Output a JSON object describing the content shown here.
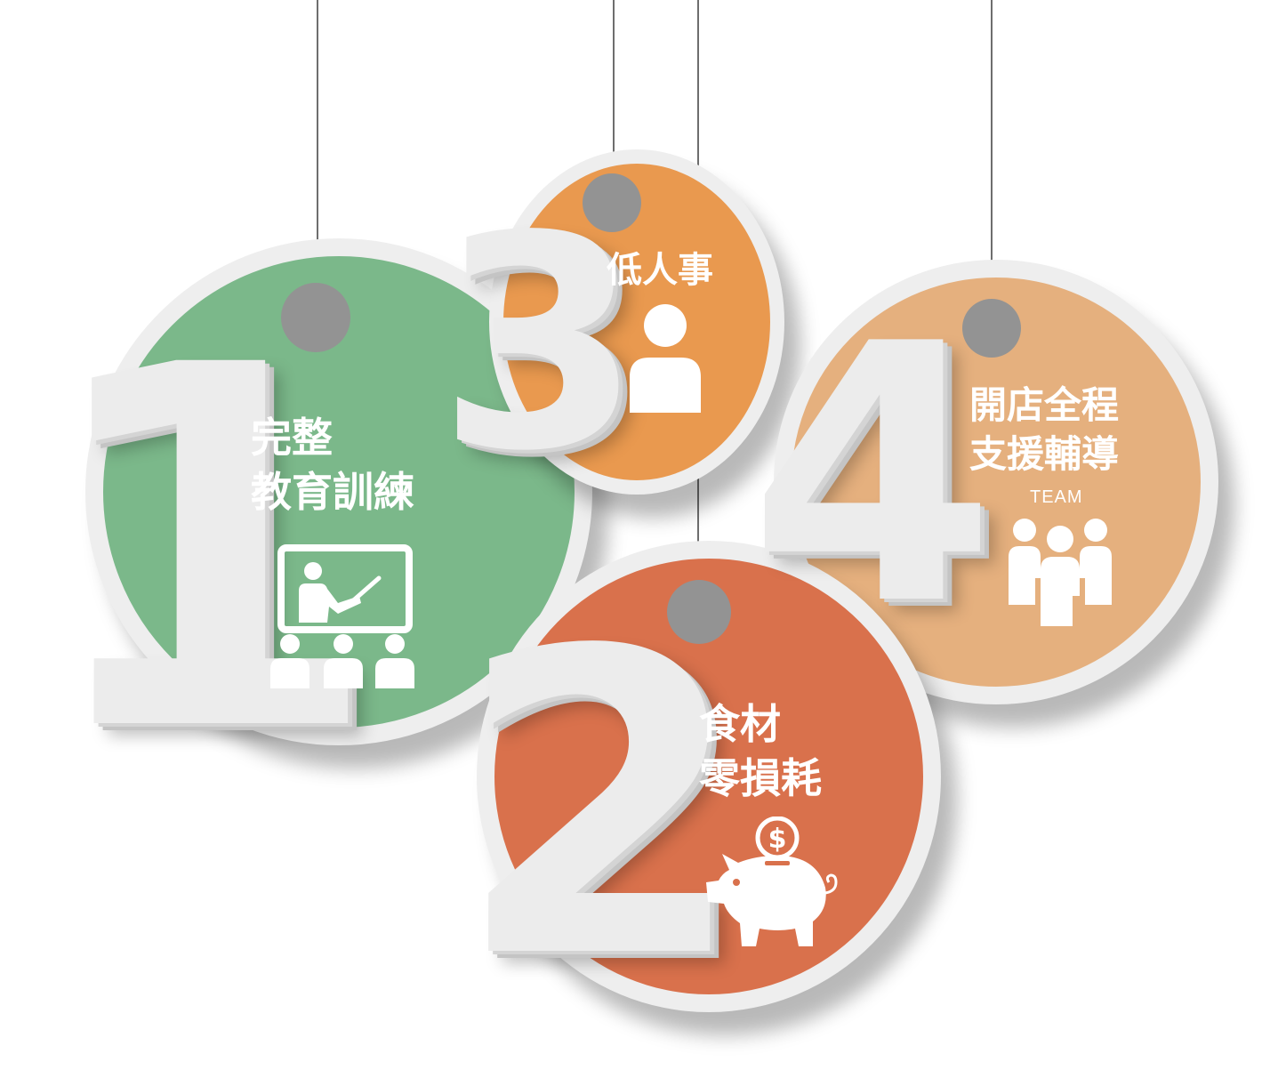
{
  "tags": [
    {
      "number": "1",
      "lines": [
        "完整",
        "教育訓練"
      ],
      "icon": "teacher-training-icon",
      "color": "#7bb88a"
    },
    {
      "number": "2",
      "lines": [
        "食材",
        "零損耗"
      ],
      "icon": "piggy-bank-icon",
      "color": "#d9714c"
    },
    {
      "number": "3",
      "lines": [
        "低人事"
      ],
      "icon": "person-icon",
      "color": "#e9994f"
    },
    {
      "number": "4",
      "lines": [
        "開店全程",
        "支援輔導"
      ],
      "sub": "TEAM",
      "icon": "team-icon",
      "color": "#e5b07e"
    }
  ],
  "colors": {
    "string": "#6e6e6e",
    "hole": "#939393",
    "rim": "#eeeeee"
  }
}
